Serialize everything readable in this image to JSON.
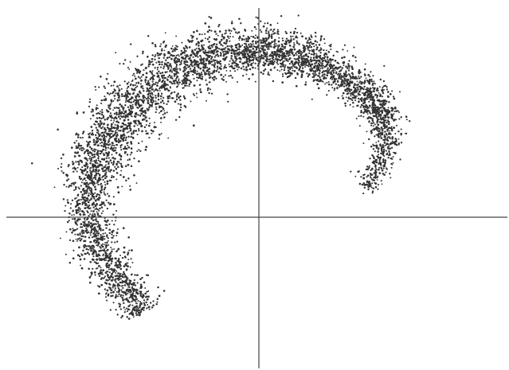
{
  "chart_data": {
    "type": "scatter",
    "title": "",
    "xlabel": "",
    "ylabel": "",
    "axes": "cross-at-origin",
    "grid": false,
    "legend": "none",
    "xlim": [
      -1.0,
      1.0
    ],
    "ylim": [
      -0.8,
      1.0
    ],
    "marker_color": "#333333",
    "axis_color": "#444444",
    "series": [
      {
        "point_count": 5000,
        "shape": "crescent",
        "description_points": [
          {
            "x": 0.42,
            "y": 0.12
          },
          {
            "x": 0.5,
            "y": 0.3
          },
          {
            "x": 0.48,
            "y": 0.48
          },
          {
            "x": 0.35,
            "y": 0.62
          },
          {
            "x": 0.15,
            "y": 0.72
          },
          {
            "x": -0.05,
            "y": 0.75
          },
          {
            "x": -0.25,
            "y": 0.7
          },
          {
            "x": -0.45,
            "y": 0.55
          },
          {
            "x": -0.6,
            "y": 0.35
          },
          {
            "x": -0.68,
            "y": 0.1
          },
          {
            "x": -0.65,
            "y": -0.1
          },
          {
            "x": -0.55,
            "y": -0.28
          },
          {
            "x": -0.45,
            "y": -0.42
          }
        ]
      }
    ]
  }
}
